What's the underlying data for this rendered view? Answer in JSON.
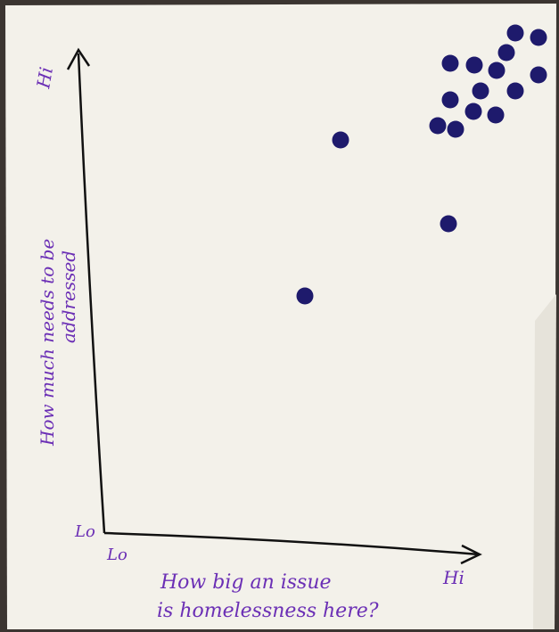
{
  "y_axis": {
    "high_label": "Hi",
    "low_label": "Lo",
    "title_lines": [
      "How much needs to be",
      "addressed"
    ]
  },
  "x_axis": {
    "low_label": "Lo",
    "high_label": "Hi",
    "title_lines": [
      "How big an issue",
      "is homelessness here?"
    ]
  }
}
